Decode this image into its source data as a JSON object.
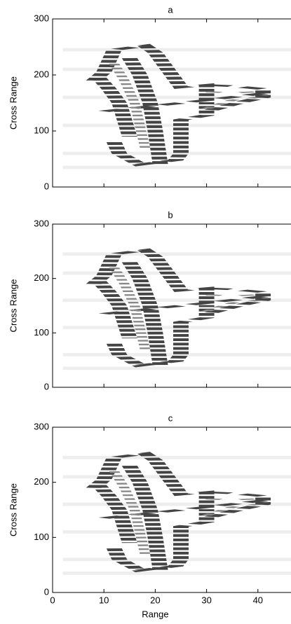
{
  "chart_data": [
    {
      "type": "image",
      "title": "a",
      "ylabel": "Cross Range",
      "ylim": [
        0,
        300
      ],
      "yticks": [
        0,
        100,
        200,
        300
      ]
    },
    {
      "type": "image",
      "title": "b",
      "ylabel": "Cross Range",
      "ylim": [
        0,
        300
      ],
      "yticks": [
        0,
        100,
        200,
        300
      ]
    },
    {
      "type": "image",
      "title": "c",
      "ylabel": "Cross Range",
      "ylim": [
        0,
        300
      ],
      "yticks": [
        0,
        100,
        200,
        300
      ],
      "xlabel": "Range",
      "xlim": [
        0,
        50
      ],
      "xticks": [
        0,
        10,
        20,
        30,
        40
      ]
    }
  ]
}
